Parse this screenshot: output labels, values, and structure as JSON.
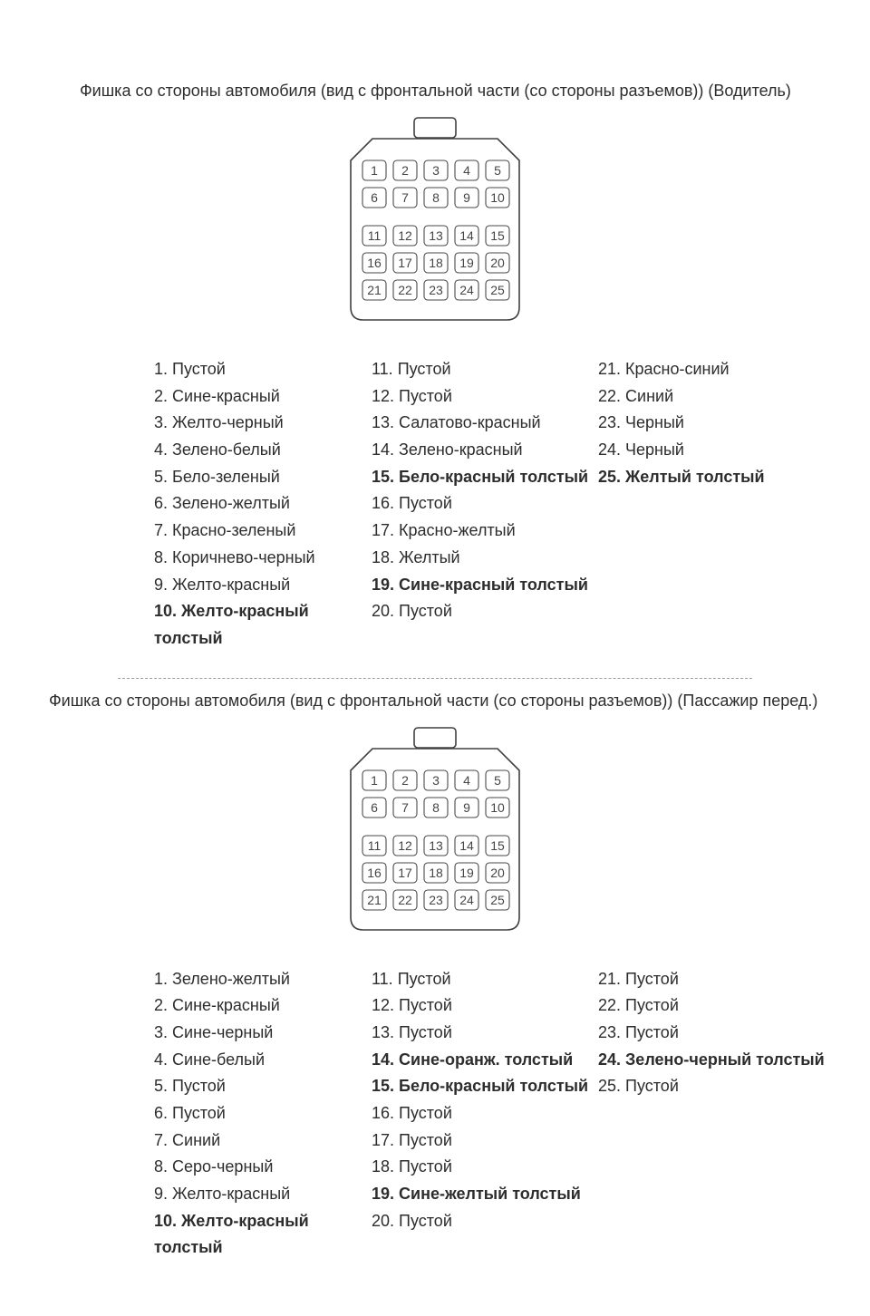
{
  "colors": {
    "page_bg": "#ffffff",
    "text": "#2d2d2d",
    "pin_stroke": "#4a4a4a",
    "outline": "#404040",
    "sep": "#9e9e9e"
  },
  "connector": {
    "rows": [
      [
        1,
        2,
        3,
        4,
        5
      ],
      [
        6,
        7,
        8,
        9,
        10
      ],
      [
        11,
        12,
        13,
        14,
        15
      ],
      [
        16,
        17,
        18,
        19,
        20
      ],
      [
        21,
        22,
        23,
        24,
        25
      ]
    ],
    "gap_after_row": 2
  },
  "sections": [
    {
      "title": "Фишка со стороны автомобиля (вид с фронтальной части (со стороны разъемов)) (Водитель)",
      "items": [
        {
          "n": "1.",
          "t": "Пустой",
          "b": false
        },
        {
          "n": "2.",
          "t": "Сине-красный",
          "b": false
        },
        {
          "n": "3.",
          "t": "Желто-черный",
          "b": false
        },
        {
          "n": "4.",
          "t": "Зелено-белый",
          "b": false
        },
        {
          "n": "5.",
          "t": "Бело-зеленый",
          "b": false
        },
        {
          "n": "6.",
          "t": "Зелено-желтый",
          "b": false
        },
        {
          "n": "7.",
          "t": "Красно-зеленый",
          "b": false
        },
        {
          "n": "8.",
          "t": "Коричнево-черный",
          "b": false
        },
        {
          "n": "9.",
          "t": "Желто-красный",
          "b": false
        },
        {
          "n": "10.",
          "t": "Желто-красный толстый",
          "b": true
        },
        {
          "n": "11.",
          "t": "Пустой",
          "b": false
        },
        {
          "n": "12.",
          "t": "Пустой",
          "b": false
        },
        {
          "n": "13.",
          "t": "Салатово-красный",
          "b": false
        },
        {
          "n": "14.",
          "t": "Зелено-красный",
          "b": false
        },
        {
          "n": "15.",
          "t": "Бело-красный толстый",
          "b": true
        },
        {
          "n": "16.",
          "t": "Пустой",
          "b": false
        },
        {
          "n": "17.",
          "t": "Красно-желтый",
          "b": false
        },
        {
          "n": "18.",
          "t": "Желтый",
          "b": false
        },
        {
          "n": "19.",
          "t": "Сине-красный толстый",
          "b": true
        },
        {
          "n": "20.",
          "t": "Пустой",
          "b": false
        },
        {
          "n": "21.",
          "t": "Красно-синий",
          "b": false
        },
        {
          "n": "22.",
          "t": "Синий",
          "b": false
        },
        {
          "n": "23.",
          "t": "Черный",
          "b": false
        },
        {
          "n": "24.",
          "t": "Черный",
          "b": false
        },
        {
          "n": "25.",
          "t": "Желтый толстый",
          "b": true
        }
      ]
    },
    {
      "title": "Фишка со стороны автомобиля (вид с фронтальной части (со стороны разъемов)) (Пассажир перед.)",
      "items": [
        {
          "n": "1.",
          "t": "Зелено-желтый",
          "b": false
        },
        {
          "n": "2.",
          "t": "Сине-красный",
          "b": false
        },
        {
          "n": "3.",
          "t": "Сине-черный",
          "b": false
        },
        {
          "n": "4.",
          "t": "Сине-белый",
          "b": false
        },
        {
          "n": "5.",
          "t": "Пустой",
          "b": false
        },
        {
          "n": "6.",
          "t": "Пустой",
          "b": false
        },
        {
          "n": "7.",
          "t": "Синий",
          "b": false
        },
        {
          "n": "8.",
          "t": "Серо-черный",
          "b": false
        },
        {
          "n": "9.",
          "t": "Желто-красный",
          "b": false
        },
        {
          "n": "10.",
          "t": "Желто-красный толстый",
          "b": true
        },
        {
          "n": "11.",
          "t": "Пустой",
          "b": false
        },
        {
          "n": "12.",
          "t": "Пустой",
          "b": false
        },
        {
          "n": "13.",
          "t": "Пустой",
          "b": false
        },
        {
          "n": "14.",
          "t": "Сине-оранж. толстый",
          "b": true
        },
        {
          "n": "15.",
          "t": "Бело-красный толстый",
          "b": true
        },
        {
          "n": "16.",
          "t": "Пустой",
          "b": false
        },
        {
          "n": "17.",
          "t": "Пустой",
          "b": false
        },
        {
          "n": "18.",
          "t": "Пустой",
          "b": false
        },
        {
          "n": "19.",
          "t": "Сине-желтый толстый",
          "b": true
        },
        {
          "n": "20.",
          "t": "Пустой",
          "b": false
        },
        {
          "n": "21.",
          "t": "Пустой",
          "b": false
        },
        {
          "n": "22.",
          "t": "Пустой",
          "b": false
        },
        {
          "n": "23.",
          "t": "Пустой",
          "b": false
        },
        {
          "n": "24.",
          "t": "Зелено-черный толстый",
          "b": true
        },
        {
          "n": "25.",
          "t": "Пустой",
          "b": false
        }
      ]
    }
  ]
}
